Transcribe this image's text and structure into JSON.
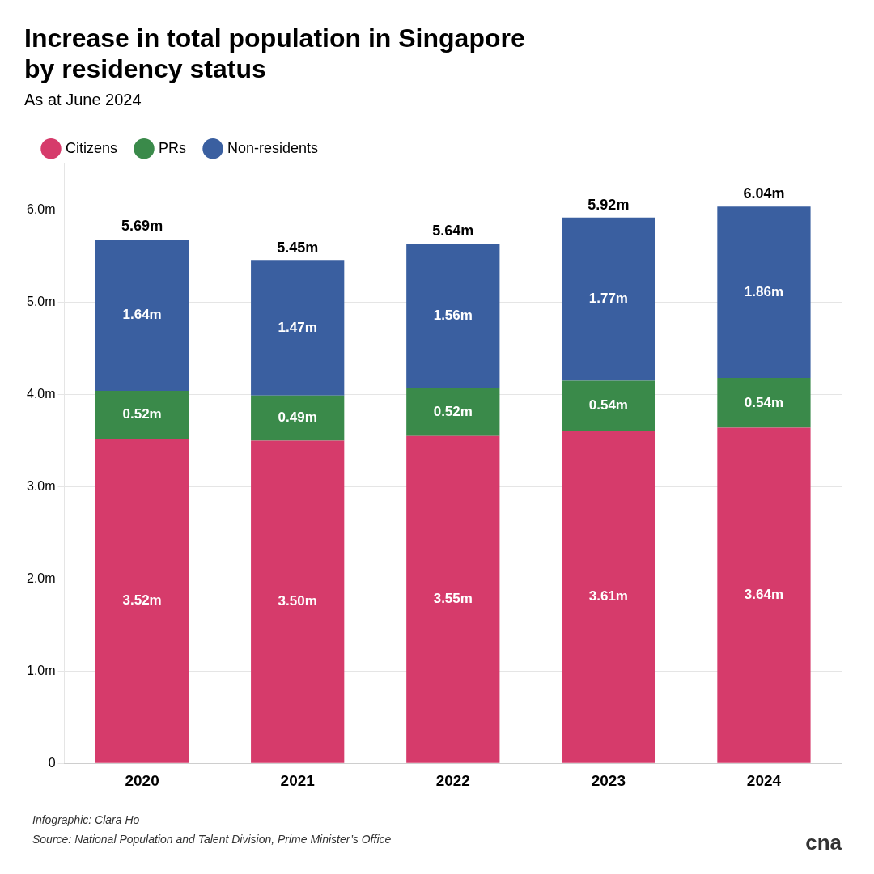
{
  "chart_data": {
    "type": "bar",
    "stacked": true,
    "title": [
      "Increase in total population in Singapore",
      "by residency status"
    ],
    "subtitle": "As at June 2024",
    "categories": [
      "2020",
      "2021",
      "2022",
      "2023",
      "2024"
    ],
    "series": [
      {
        "name": "Citizens",
        "color": "#D63B6B",
        "values": [
          3.52,
          3.5,
          3.55,
          3.61,
          3.64
        ],
        "value_labels": [
          "3.52m",
          "3.50m",
          "3.55m",
          "3.61m",
          "3.64m"
        ]
      },
      {
        "name": "PRs",
        "color": "#3A8A4A",
        "values": [
          0.52,
          0.49,
          0.52,
          0.54,
          0.54
        ],
        "value_labels": [
          "0.52m",
          "0.49m",
          "0.52m",
          "0.54m",
          "0.54m"
        ]
      },
      {
        "name": "Non-residents",
        "color": "#3A5FA0",
        "values": [
          1.64,
          1.47,
          1.56,
          1.77,
          1.86
        ],
        "value_labels": [
          "1.64m",
          "1.47m",
          "1.56m",
          "1.77m",
          "1.86m"
        ]
      }
    ],
    "totals": [
      5.69,
      5.45,
      5.64,
      5.92,
      6.04
    ],
    "total_labels": [
      "5.69m",
      "5.45m",
      "5.64m",
      "5.92m",
      "6.04m"
    ],
    "ylim": [
      0,
      6.5
    ],
    "yticks": [
      0,
      {
        "value": 1.0,
        "label": "1.0m"
      },
      {
        "value": 2.0,
        "label": "2.0m"
      },
      {
        "value": 3.0,
        "label": "3.0m"
      },
      {
        "value": 4.0,
        "label": "4.0m"
      },
      {
        "value": 5.0,
        "label": "5.0m"
      },
      {
        "value": 6.0,
        "label": "6.0m"
      }
    ],
    "grid": true,
    "legend": "upper left",
    "data_labels": true,
    "annotations": [
      "Infographic: Clara Ho",
      "Source: National Population and Talent Division, Prime Minister’s Office",
      "cna"
    ]
  }
}
